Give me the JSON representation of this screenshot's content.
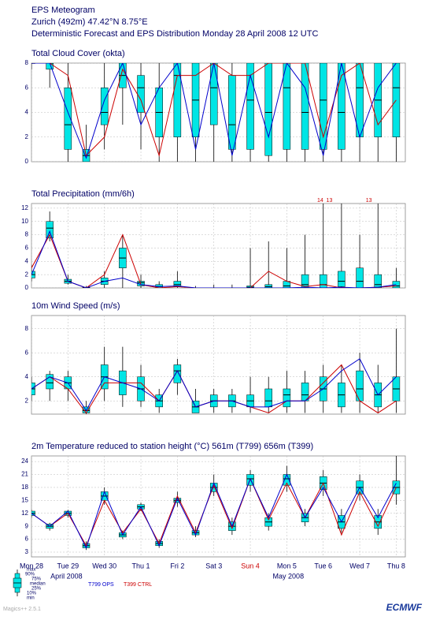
{
  "header": {
    "title": "EPS Meteogram",
    "location": "Zurich (492m) 47.42°N 8.75°E",
    "subtitle": "Deterministic Forecast and EPS Distribution Monday 28 April 2008 12 UTC"
  },
  "legend": {
    "box_stats": [
      "max",
      "90%",
      "75%",
      "median",
      "25%",
      "10%",
      "min"
    ],
    "lines": [
      {
        "name": "T799 OPS",
        "color": "#0000cc"
      },
      {
        "name": "T399 CTRL",
        "color": "#cc0000"
      }
    ],
    "box_color": "#00e5e5"
  },
  "footer": {
    "software": "Magics++ 2.5.1",
    "logo": "ECMWF"
  },
  "chart_data": [
    {
      "type": "boxplot",
      "title": "Total Cloud Cover (okta)",
      "x": [
        0,
        12,
        24,
        36,
        48,
        60,
        72,
        84,
        96,
        108,
        120,
        132,
        144,
        156,
        168,
        180,
        192,
        204,
        216,
        228,
        240
      ],
      "xlim": [
        0,
        246
      ],
      "ylim": [
        0,
        8
      ],
      "yticks": [
        0,
        2,
        4,
        6,
        8
      ],
      "grid": true,
      "min": [
        7.5,
        6,
        0,
        0,
        1,
        3,
        1,
        0,
        0,
        0,
        0,
        0,
        0,
        0,
        0,
        0,
        0,
        0,
        0,
        0,
        0
      ],
      "p25": [
        8,
        7.5,
        1,
        0,
        3,
        6,
        4,
        2,
        2,
        2,
        3,
        1,
        1,
        0.5,
        1,
        1,
        1,
        1,
        2,
        2,
        2
      ],
      "median": [
        8,
        8,
        3,
        0.5,
        4,
        7,
        6,
        4,
        7,
        5,
        6,
        3,
        5,
        4,
        6,
        4,
        5,
        4,
        6,
        5,
        6
      ],
      "p75": [
        8,
        8,
        6,
        1,
        6,
        8,
        7,
        6,
        8,
        8,
        8,
        7,
        8,
        8,
        8,
        8,
        8,
        8,
        8,
        8,
        8
      ],
      "max": [
        8,
        8,
        8,
        3,
        8,
        8,
        8,
        8,
        8,
        8,
        8,
        8,
        8,
        8,
        8,
        8,
        8,
        8,
        8,
        8,
        8
      ],
      "ops": [
        8,
        8,
        4,
        0.3,
        5,
        8,
        3,
        6,
        8,
        1,
        8,
        0.5,
        7,
        2,
        8,
        6,
        0.5,
        8,
        2,
        6,
        8
      ],
      "ctrl": [
        8,
        8,
        7,
        0.5,
        2,
        7.5,
        5,
        0.5,
        7,
        7,
        8,
        7,
        7,
        8,
        8,
        8,
        2,
        7,
        8,
        3,
        5
      ]
    },
    {
      "type": "boxplot",
      "title": "Total Precipitation (mm/6h)",
      "x": [
        0,
        12,
        24,
        36,
        48,
        60,
        72,
        84,
        96,
        108,
        120,
        132,
        144,
        156,
        168,
        180,
        192,
        204,
        216,
        228,
        240
      ],
      "xlim": [
        0,
        246
      ],
      "ylim": [
        0,
        12.7
      ],
      "yticks": [
        0,
        2,
        4,
        6,
        8,
        10,
        12
      ],
      "grid": true,
      "min": [
        1,
        7,
        0.5,
        0,
        0,
        0,
        0,
        0,
        0,
        0,
        0,
        0,
        0,
        0,
        0,
        0,
        0,
        0,
        0,
        0,
        0
      ],
      "p25": [
        1.5,
        7.5,
        0.7,
        0,
        0.5,
        3,
        0.3,
        0,
        0.2,
        0,
        0,
        0,
        0,
        0,
        0,
        0,
        0,
        0.2,
        0,
        0,
        0
      ],
      "median": [
        2,
        9,
        1,
        0,
        1,
        4.5,
        0.8,
        0.2,
        0.5,
        0,
        0,
        0,
        0.1,
        0.2,
        0.3,
        0.5,
        0.5,
        1,
        1,
        0.5,
        0.3
      ],
      "p75": [
        2.5,
        10,
        1.3,
        0.1,
        1.5,
        6,
        1,
        0.5,
        1,
        0,
        0,
        0,
        0.3,
        0.5,
        1,
        2,
        2,
        2.5,
        3,
        2,
        1
      ],
      "max": [
        3.5,
        11.5,
        2,
        0.3,
        2.5,
        8,
        2,
        1,
        2.5,
        0.3,
        0.5,
        0.5,
        6,
        7,
        6,
        8,
        14,
        13,
        8,
        13,
        3
      ],
      "ops": [
        2,
        8.5,
        1,
        0,
        1,
        1.5,
        0.5,
        0.2,
        0.3,
        0,
        0,
        0,
        0,
        0,
        0,
        0.1,
        0,
        0.1,
        0,
        0.1,
        0.5
      ],
      "ctrl": [
        3,
        8,
        1,
        0,
        2,
        8,
        0.5,
        0,
        0.2,
        0,
        0,
        0,
        0,
        2.5,
        1,
        0.2,
        0.5,
        0,
        0,
        0.1,
        0.3
      ],
      "annotations": [
        {
          "x": 190,
          "value": 14
        },
        {
          "x": 196,
          "value": 13
        },
        {
          "x": 222,
          "value": 13
        }
      ]
    },
    {
      "type": "boxplot",
      "title": "10m Wind Speed (m/s)",
      "x": [
        0,
        12,
        24,
        36,
        48,
        60,
        72,
        84,
        96,
        108,
        120,
        132,
        144,
        156,
        168,
        180,
        192,
        204,
        216,
        228,
        240
      ],
      "xlim": [
        0,
        246
      ],
      "ylim": [
        0.9,
        9.1
      ],
      "yticks": [
        2,
        4,
        6,
        8
      ],
      "grid": true,
      "min": [
        2,
        2,
        2,
        0.9,
        2,
        1.5,
        1.5,
        1,
        2.5,
        1,
        1,
        1,
        1,
        1,
        1,
        1,
        1,
        1,
        1,
        1,
        1
      ],
      "p25": [
        2.5,
        3,
        3,
        1,
        3,
        2.5,
        2,
        1.5,
        3.5,
        1,
        1.5,
        1.5,
        1.5,
        1.5,
        1.5,
        2,
        2,
        1.5,
        2,
        1.5,
        2
      ],
      "median": [
        3,
        3.5,
        3.5,
        1.2,
        4,
        3.5,
        3,
        2,
        4.5,
        1.5,
        2,
        2,
        2,
        2,
        2.5,
        2.5,
        3,
        2.5,
        3,
        2.5,
        3
      ],
      "p75": [
        3.5,
        4.2,
        4,
        1.5,
        5,
        4.5,
        4,
        2.5,
        5,
        2,
        2.5,
        2.5,
        2.5,
        3,
        3,
        3.5,
        4,
        3.5,
        4.5,
        3.5,
        4
      ],
      "max": [
        4,
        4.5,
        4.5,
        2,
        6.5,
        6.5,
        5,
        3,
        5.5,
        3,
        3,
        3,
        4,
        4,
        4.5,
        4.5,
        5,
        5,
        6,
        5,
        8
      ],
      "ops": [
        3,
        4,
        3.5,
        1.2,
        4,
        3.5,
        3,
        2,
        4.5,
        1.5,
        2,
        2,
        1.5,
        1.5,
        2,
        2,
        3,
        4.5,
        5.5,
        2.5,
        4
      ],
      "ctrl": [
        3,
        4,
        3,
        1,
        3.5,
        3.5,
        3.5,
        2,
        4.5,
        1.5,
        2,
        2,
        1.5,
        1,
        2,
        2,
        3.5,
        5,
        2,
        1,
        2
      ]
    },
    {
      "type": "boxplot",
      "title": "2m Temperature reduced to station height (°C) 561m (T799) 656m (T399)",
      "x": [
        0,
        12,
        24,
        36,
        48,
        60,
        72,
        84,
        96,
        108,
        120,
        132,
        144,
        156,
        168,
        180,
        192,
        204,
        216,
        228,
        240
      ],
      "xlim": [
        0,
        246
      ],
      "ylim": [
        1.9,
        25.3
      ],
      "yticks": [
        3,
        6,
        9,
        12,
        15,
        18,
        21,
        24
      ],
      "grid": true,
      "min": [
        11,
        8,
        11,
        3.5,
        14,
        6,
        12.5,
        4,
        13.5,
        6.5,
        16,
        7,
        17,
        8,
        17,
        9,
        16,
        7.5,
        15,
        7,
        14
      ],
      "p25": [
        11.5,
        8.5,
        11.5,
        4,
        15,
        6.5,
        13,
        4.5,
        14.5,
        7,
        17,
        8,
        18.5,
        9,
        18.5,
        10,
        17.5,
        8.5,
        16.5,
        8.5,
        16.5
      ],
      "median": [
        12,
        9,
        12,
        4.5,
        16,
        7,
        13.5,
        5,
        15,
        7.5,
        18,
        9,
        20,
        10,
        20,
        11,
        19,
        10,
        18,
        10,
        18
      ],
      "p75": [
        12.5,
        9.5,
        12.5,
        5,
        17,
        7.5,
        14,
        5.5,
        15.5,
        8,
        19,
        10,
        21,
        11,
        21,
        12,
        20.5,
        11.5,
        19.5,
        11.5,
        19.5
      ],
      "max": [
        12.8,
        9.8,
        12.8,
        5.5,
        18,
        8,
        14.5,
        6,
        17,
        9,
        21,
        11,
        22,
        12,
        23,
        13,
        22,
        13,
        21,
        13,
        25.5
      ],
      "ops": [
        12,
        9,
        12.5,
        4,
        17,
        7,
        13.5,
        4.5,
        15.5,
        7,
        19,
        9,
        20,
        11,
        21,
        11,
        18,
        10,
        18,
        11,
        19
      ],
      "ctrl": [
        12,
        9,
        12,
        4.5,
        15,
        7.5,
        13,
        5,
        16,
        7.5,
        18.5,
        8.5,
        20,
        10.5,
        19,
        11,
        19,
        7,
        17,
        9,
        18
      ],
      "xticks": [
        {
          "value": 0,
          "label": "Mon 28"
        },
        {
          "value": 24,
          "label": "Tue 29"
        },
        {
          "value": 48,
          "label": "Wed 30"
        },
        {
          "value": 72,
          "label": "Thu 1"
        },
        {
          "value": 96,
          "label": "Fri 2"
        },
        {
          "value": 120,
          "label": "Sat 3"
        },
        {
          "value": 144,
          "label": "Sun 4",
          "color": "#cc0000"
        },
        {
          "value": 168,
          "label": "Mon 5"
        },
        {
          "value": 192,
          "label": "Tue 6"
        },
        {
          "value": 216,
          "label": "Wed 7"
        },
        {
          "value": 240,
          "label": "Thu 8"
        }
      ],
      "month_labels": [
        {
          "x": 23,
          "label": "April 2008"
        },
        {
          "x": 169,
          "label": "May 2008"
        }
      ]
    }
  ]
}
